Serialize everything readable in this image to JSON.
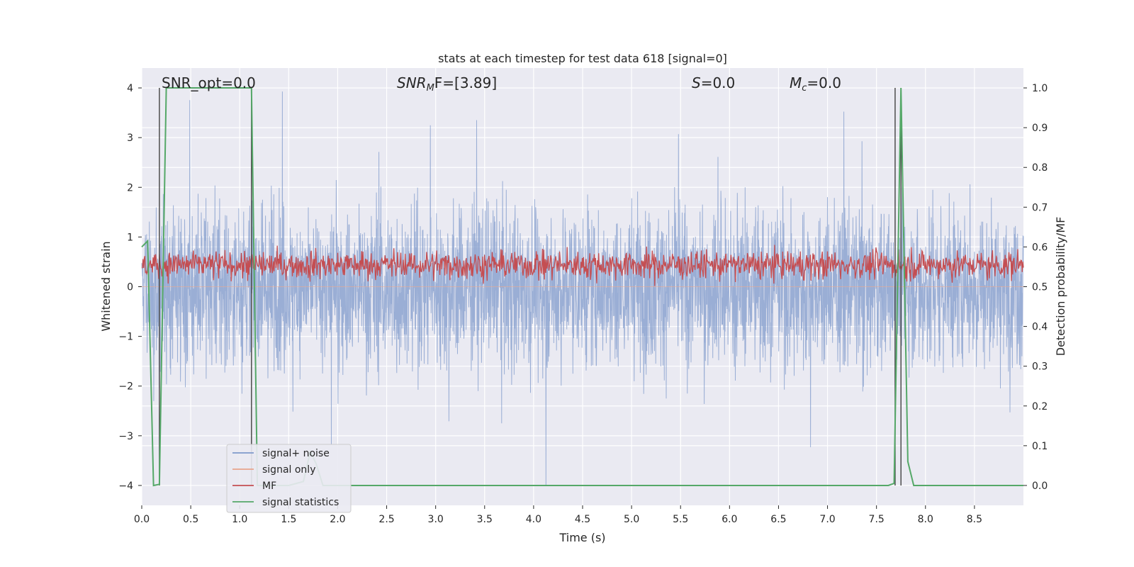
{
  "chart_data": {
    "type": "line",
    "title": "stats at each timestep for test data 618 [signal=0]",
    "xlabel": "Time (s)",
    "ylabel_left": "Whitened strain",
    "ylabel_right": "Detection probability/MF",
    "xlim": [
      0.0,
      9.0
    ],
    "ylim_left": [
      -4.4,
      4.4
    ],
    "ylim_right": [
      -0.05,
      1.05
    ],
    "x_ticks": [
      0.0,
      0.5,
      1.0,
      1.5,
      2.0,
      2.5,
      3.0,
      3.5,
      4.0,
      4.5,
      5.0,
      5.5,
      6.0,
      6.5,
      7.0,
      7.5,
      8.0,
      8.5
    ],
    "x_tick_labels": [
      "0.0",
      "0.5",
      "1.0",
      "1.5",
      "2.0",
      "2.5",
      "3.0",
      "3.5",
      "4.0",
      "4.5",
      "5.0",
      "5.5",
      "6.0",
      "6.5",
      "7.0",
      "7.5",
      "8.0",
      "8.5"
    ],
    "y_left_ticks": [
      4,
      3,
      2,
      1,
      0,
      -1,
      -2,
      -3,
      -4
    ],
    "y_left_tick_labels": [
      "4",
      "3",
      "2",
      "1",
      "0",
      "−1",
      "−2",
      "−3",
      "−4"
    ],
    "y_right_ticks": [
      1.0,
      0.9,
      0.8,
      0.7,
      0.6,
      0.5,
      0.4,
      0.3,
      0.2,
      0.1,
      0.0
    ],
    "y_right_tick_labels": [
      "1.0",
      "0.9",
      "0.8",
      "0.7",
      "0.6",
      "0.5",
      "0.4",
      "0.3",
      "0.2",
      "0.1",
      "0.0"
    ],
    "grid": true,
    "legend_position": "lower-left",
    "annotations": {
      "snr_opt": "SNR_opt=0.0",
      "snr_mf": [
        "SNR",
        "M",
        "F=[3.89]"
      ],
      "s_value": [
        "S",
        "=0.0"
      ],
      "mc_value": [
        "M",
        "c",
        "=0.0"
      ]
    },
    "vertical_markers_x": [
      0.18,
      1.12,
      7.69,
      7.75
    ],
    "series": [
      {
        "name": "signal+ noise",
        "axis": "left",
        "color": "#7f9acb",
        "sample_rate": 2048,
        "amplitude_envelope": [
          -4.0,
          4.0
        ],
        "typical_range": [
          -1.6,
          1.6
        ]
      },
      {
        "name": "signal only",
        "axis": "left",
        "color": "#e8a48c",
        "values": "flat at 0"
      },
      {
        "name": "MF",
        "axis": "right",
        "color": "#c44e52",
        "typical_range": [
          0.5,
          0.63
        ]
      },
      {
        "name": "signal statistics",
        "axis": "right",
        "color": "#55a868",
        "points": [
          [
            0.0,
            0.6
          ],
          [
            0.06,
            0.615
          ],
          [
            0.12,
            0.0
          ],
          [
            0.18,
            0.003
          ],
          [
            0.25,
            1.0
          ],
          [
            1.12,
            1.0
          ],
          [
            1.18,
            0.0
          ],
          [
            1.5,
            0.0
          ],
          [
            1.65,
            0.01
          ],
          [
            1.72,
            0.085
          ],
          [
            1.78,
            0.055
          ],
          [
            1.85,
            0.0
          ],
          [
            7.62,
            0.0
          ],
          [
            7.68,
            0.005
          ],
          [
            7.75,
            1.0
          ],
          [
            7.82,
            0.06
          ],
          [
            7.88,
            0.0
          ],
          [
            9.0,
            0.0
          ]
        ]
      }
    ]
  },
  "legend": {
    "items": [
      {
        "label": "signal+ noise",
        "color": "#7f9acb"
      },
      {
        "label": "signal only",
        "color": "#e8a48c"
      },
      {
        "label": "MF",
        "color": "#c44e52"
      },
      {
        "label": "signal statistics",
        "color": "#55a868"
      }
    ]
  },
  "colors": {
    "plot_background": "#eaeaf2",
    "grid": "#ffffff",
    "text": "#262626",
    "marker_line": "#4d4d4d"
  }
}
